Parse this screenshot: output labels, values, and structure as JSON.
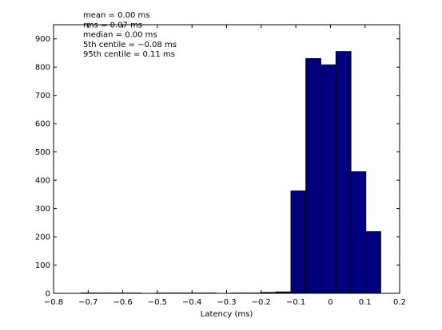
{
  "chart_data": {
    "type": "bar",
    "xlabel": "Latency (ms)",
    "ylabel": "",
    "title": "",
    "xlim": [
      -0.8,
      0.2
    ],
    "ylim": [
      0,
      950
    ],
    "xticks": [
      -0.8,
      -0.7,
      -0.6,
      -0.5,
      -0.4,
      -0.3,
      -0.2,
      -0.1,
      0,
      0.1,
      0.2
    ],
    "xtick_labels": [
      "−0.8",
      "−0.7",
      "−0.6",
      "−0.5",
      "−0.4",
      "−0.3",
      "−0.2",
      "−0.1",
      "0",
      "0.1",
      "0.2"
    ],
    "yticks": [
      0,
      100,
      200,
      300,
      400,
      500,
      600,
      700,
      800,
      900
    ],
    "bin_width": 0.0433,
    "bins": [
      {
        "left": -0.721,
        "value": 1
      },
      {
        "left": -0.678,
        "value": 1
      },
      {
        "left": -0.634,
        "value": 1
      },
      {
        "left": -0.591,
        "value": 1
      },
      {
        "left": -0.548,
        "value": 0
      },
      {
        "left": -0.504,
        "value": 1
      },
      {
        "left": -0.461,
        "value": 1
      },
      {
        "left": -0.418,
        "value": 1
      },
      {
        "left": -0.374,
        "value": 1
      },
      {
        "left": -0.331,
        "value": 0
      },
      {
        "left": -0.288,
        "value": 1
      },
      {
        "left": -0.244,
        "value": 1
      },
      {
        "left": -0.201,
        "value": 3
      },
      {
        "left": -0.158,
        "value": 5
      },
      {
        "left": -0.114,
        "value": 362
      },
      {
        "left": -0.071,
        "value": 830
      },
      {
        "left": -0.028,
        "value": 808
      },
      {
        "left": 0.016,
        "value": 855
      },
      {
        "left": 0.059,
        "value": 430
      },
      {
        "left": 0.102,
        "value": 218
      }
    ],
    "bar_color": "#00007f",
    "edge_color": "#000000",
    "annotations": [
      "mean = 0.00 ms",
      "rms = 0.07 ms",
      "median = 0.00 ms",
      "5th centile = −0.08 ms",
      "95th centile = 0.11 ms"
    ]
  }
}
